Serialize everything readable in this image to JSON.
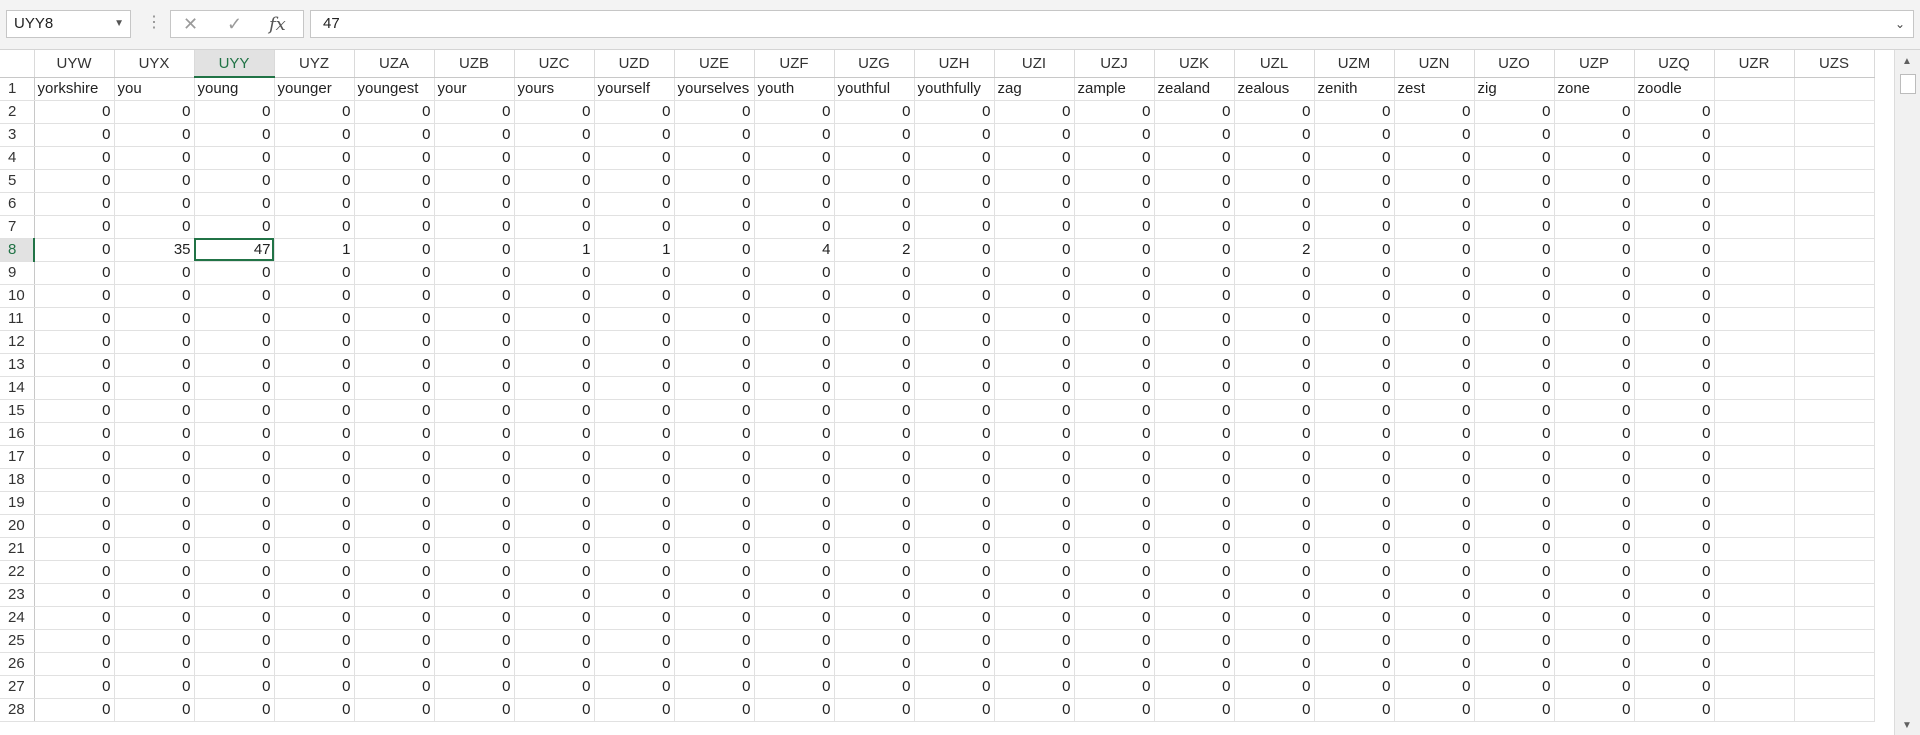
{
  "formula_bar": {
    "name_box": "UYY8",
    "cancel_icon": "✕",
    "enter_icon": "✓",
    "fx_label": "fx",
    "value": "47"
  },
  "columns": [
    "UYW",
    "UYX",
    "UYY",
    "UYZ",
    "UZA",
    "UZB",
    "UZC",
    "UZD",
    "UZE",
    "UZF",
    "UZG",
    "UZH",
    "UZI",
    "UZJ",
    "UZK",
    "UZL",
    "UZM",
    "UZN",
    "UZO",
    "UZP",
    "UZQ",
    "UZR",
    "UZS"
  ],
  "selected_column": "UYY",
  "selected_row": "8",
  "rows": [
    {
      "n": "1",
      "cells": [
        "yorkshire",
        "you",
        "young",
        "younger",
        "youngest",
        "your",
        "yours",
        "yourself",
        "yourselves",
        "youth",
        "youthful",
        "youthfully",
        "zag",
        "zample",
        "zealand",
        "zealous",
        "zenith",
        "zest",
        "zig",
        "zone",
        "zoodle",
        "",
        ""
      ]
    },
    {
      "n": "2",
      "cells": [
        "0",
        "0",
        "0",
        "0",
        "0",
        "0",
        "0",
        "0",
        "0",
        "0",
        "0",
        "0",
        "0",
        "0",
        "0",
        "0",
        "0",
        "0",
        "0",
        "0",
        "0",
        "",
        ""
      ]
    },
    {
      "n": "3",
      "cells": [
        "0",
        "0",
        "0",
        "0",
        "0",
        "0",
        "0",
        "0",
        "0",
        "0",
        "0",
        "0",
        "0",
        "0",
        "0",
        "0",
        "0",
        "0",
        "0",
        "0",
        "0",
        "",
        ""
      ]
    },
    {
      "n": "4",
      "cells": [
        "0",
        "0",
        "0",
        "0",
        "0",
        "0",
        "0",
        "0",
        "0",
        "0",
        "0",
        "0",
        "0",
        "0",
        "0",
        "0",
        "0",
        "0",
        "0",
        "0",
        "0",
        "",
        ""
      ]
    },
    {
      "n": "5",
      "cells": [
        "0",
        "0",
        "0",
        "0",
        "0",
        "0",
        "0",
        "0",
        "0",
        "0",
        "0",
        "0",
        "0",
        "0",
        "0",
        "0",
        "0",
        "0",
        "0",
        "0",
        "0",
        "",
        ""
      ]
    },
    {
      "n": "6",
      "cells": [
        "0",
        "0",
        "0",
        "0",
        "0",
        "0",
        "0",
        "0",
        "0",
        "0",
        "0",
        "0",
        "0",
        "0",
        "0",
        "0",
        "0",
        "0",
        "0",
        "0",
        "0",
        "",
        ""
      ]
    },
    {
      "n": "7",
      "cells": [
        "0",
        "0",
        "0",
        "0",
        "0",
        "0",
        "0",
        "0",
        "0",
        "0",
        "0",
        "0",
        "0",
        "0",
        "0",
        "0",
        "0",
        "0",
        "0",
        "0",
        "0",
        "",
        ""
      ]
    },
    {
      "n": "8",
      "cells": [
        "0",
        "35",
        "47",
        "1",
        "0",
        "0",
        "1",
        "1",
        "0",
        "4",
        "2",
        "0",
        "0",
        "0",
        "0",
        "2",
        "0",
        "0",
        "0",
        "0",
        "0",
        "",
        ""
      ]
    },
    {
      "n": "9",
      "cells": [
        "0",
        "0",
        "0",
        "0",
        "0",
        "0",
        "0",
        "0",
        "0",
        "0",
        "0",
        "0",
        "0",
        "0",
        "0",
        "0",
        "0",
        "0",
        "0",
        "0",
        "0",
        "",
        ""
      ]
    },
    {
      "n": "10",
      "cells": [
        "0",
        "0",
        "0",
        "0",
        "0",
        "0",
        "0",
        "0",
        "0",
        "0",
        "0",
        "0",
        "0",
        "0",
        "0",
        "0",
        "0",
        "0",
        "0",
        "0",
        "0",
        "",
        ""
      ]
    },
    {
      "n": "11",
      "cells": [
        "0",
        "0",
        "0",
        "0",
        "0",
        "0",
        "0",
        "0",
        "0",
        "0",
        "0",
        "0",
        "0",
        "0",
        "0",
        "0",
        "0",
        "0",
        "0",
        "0",
        "0",
        "",
        ""
      ]
    },
    {
      "n": "12",
      "cells": [
        "0",
        "0",
        "0",
        "0",
        "0",
        "0",
        "0",
        "0",
        "0",
        "0",
        "0",
        "0",
        "0",
        "0",
        "0",
        "0",
        "0",
        "0",
        "0",
        "0",
        "0",
        "",
        ""
      ]
    },
    {
      "n": "13",
      "cells": [
        "0",
        "0",
        "0",
        "0",
        "0",
        "0",
        "0",
        "0",
        "0",
        "0",
        "0",
        "0",
        "0",
        "0",
        "0",
        "0",
        "0",
        "0",
        "0",
        "0",
        "0",
        "",
        ""
      ]
    },
    {
      "n": "14",
      "cells": [
        "0",
        "0",
        "0",
        "0",
        "0",
        "0",
        "0",
        "0",
        "0",
        "0",
        "0",
        "0",
        "0",
        "0",
        "0",
        "0",
        "0",
        "0",
        "0",
        "0",
        "0",
        "",
        ""
      ]
    },
    {
      "n": "15",
      "cells": [
        "0",
        "0",
        "0",
        "0",
        "0",
        "0",
        "0",
        "0",
        "0",
        "0",
        "0",
        "0",
        "0",
        "0",
        "0",
        "0",
        "0",
        "0",
        "0",
        "0",
        "0",
        "",
        ""
      ]
    },
    {
      "n": "16",
      "cells": [
        "0",
        "0",
        "0",
        "0",
        "0",
        "0",
        "0",
        "0",
        "0",
        "0",
        "0",
        "0",
        "0",
        "0",
        "0",
        "0",
        "0",
        "0",
        "0",
        "0",
        "0",
        "",
        ""
      ]
    },
    {
      "n": "17",
      "cells": [
        "0",
        "0",
        "0",
        "0",
        "0",
        "0",
        "0",
        "0",
        "0",
        "0",
        "0",
        "0",
        "0",
        "0",
        "0",
        "0",
        "0",
        "0",
        "0",
        "0",
        "0",
        "",
        ""
      ]
    },
    {
      "n": "18",
      "cells": [
        "0",
        "0",
        "0",
        "0",
        "0",
        "0",
        "0",
        "0",
        "0",
        "0",
        "0",
        "0",
        "0",
        "0",
        "0",
        "0",
        "0",
        "0",
        "0",
        "0",
        "0",
        "",
        ""
      ]
    },
    {
      "n": "19",
      "cells": [
        "0",
        "0",
        "0",
        "0",
        "0",
        "0",
        "0",
        "0",
        "0",
        "0",
        "0",
        "0",
        "0",
        "0",
        "0",
        "0",
        "0",
        "0",
        "0",
        "0",
        "0",
        "",
        ""
      ]
    },
    {
      "n": "20",
      "cells": [
        "0",
        "0",
        "0",
        "0",
        "0",
        "0",
        "0",
        "0",
        "0",
        "0",
        "0",
        "0",
        "0",
        "0",
        "0",
        "0",
        "0",
        "0",
        "0",
        "0",
        "0",
        "",
        ""
      ]
    },
    {
      "n": "21",
      "cells": [
        "0",
        "0",
        "0",
        "0",
        "0",
        "0",
        "0",
        "0",
        "0",
        "0",
        "0",
        "0",
        "0",
        "0",
        "0",
        "0",
        "0",
        "0",
        "0",
        "0",
        "0",
        "",
        ""
      ]
    },
    {
      "n": "22",
      "cells": [
        "0",
        "0",
        "0",
        "0",
        "0",
        "0",
        "0",
        "0",
        "0",
        "0",
        "0",
        "0",
        "0",
        "0",
        "0",
        "0",
        "0",
        "0",
        "0",
        "0",
        "0",
        "",
        ""
      ]
    },
    {
      "n": "23",
      "cells": [
        "0",
        "0",
        "0",
        "0",
        "0",
        "0",
        "0",
        "0",
        "0",
        "0",
        "0",
        "0",
        "0",
        "0",
        "0",
        "0",
        "0",
        "0",
        "0",
        "0",
        "0",
        "",
        ""
      ]
    },
    {
      "n": "24",
      "cells": [
        "0",
        "0",
        "0",
        "0",
        "0",
        "0",
        "0",
        "0",
        "0",
        "0",
        "0",
        "0",
        "0",
        "0",
        "0",
        "0",
        "0",
        "0",
        "0",
        "0",
        "0",
        "",
        ""
      ]
    },
    {
      "n": "25",
      "cells": [
        "0",
        "0",
        "0",
        "0",
        "0",
        "0",
        "0",
        "0",
        "0",
        "0",
        "0",
        "0",
        "0",
        "0",
        "0",
        "0",
        "0",
        "0",
        "0",
        "0",
        "0",
        "",
        ""
      ]
    },
    {
      "n": "26",
      "cells": [
        "0",
        "0",
        "0",
        "0",
        "0",
        "0",
        "0",
        "0",
        "0",
        "0",
        "0",
        "0",
        "0",
        "0",
        "0",
        "0",
        "0",
        "0",
        "0",
        "0",
        "0",
        "",
        ""
      ]
    },
    {
      "n": "27",
      "cells": [
        "0",
        "0",
        "0",
        "0",
        "0",
        "0",
        "0",
        "0",
        "0",
        "0",
        "0",
        "0",
        "0",
        "0",
        "0",
        "0",
        "0",
        "0",
        "0",
        "0",
        "0",
        "",
        ""
      ]
    },
    {
      "n": "28",
      "cells": [
        "0",
        "0",
        "0",
        "0",
        "0",
        "0",
        "0",
        "0",
        "0",
        "0",
        "0",
        "0",
        "0",
        "0",
        "0",
        "0",
        "0",
        "0",
        "0",
        "0",
        "0",
        "",
        ""
      ]
    }
  ],
  "accent_color": "#217346"
}
